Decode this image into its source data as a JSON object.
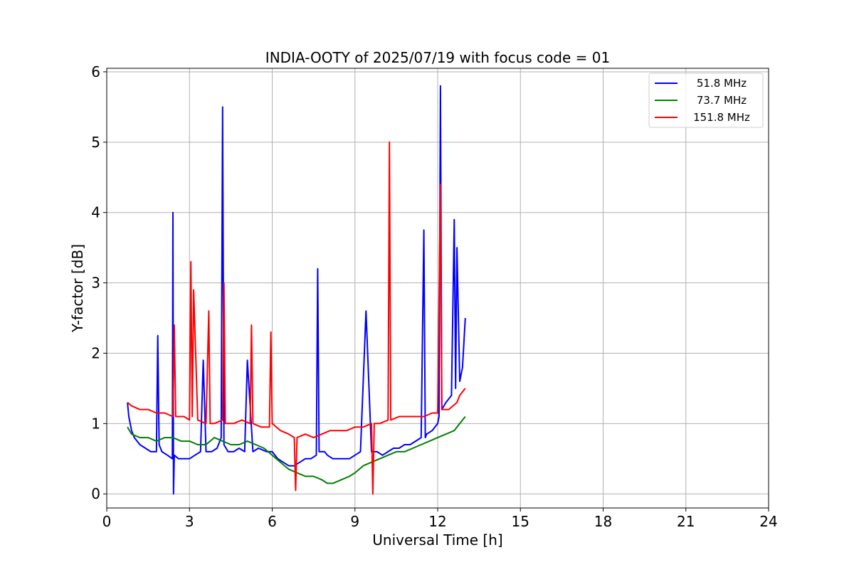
{
  "chart_data": {
    "type": "line",
    "title": "INDIA-OOTY of 2025/07/19 with focus code = 01",
    "xlabel": "Universal Time [h]",
    "ylabel": "Y-factor [dB]",
    "xlim": [
      0,
      24
    ],
    "ylim": [
      -0.2,
      6.05
    ],
    "xticks": [
      0,
      3,
      6,
      9,
      12,
      15,
      18,
      21,
      24
    ],
    "yticks": [
      0,
      1,
      2,
      3,
      4,
      5,
      6
    ],
    "grid": true,
    "legend_position": "top-right",
    "series": [
      {
        "name": "51.8 MHz",
        "color": "#0000ff",
        "x": [
          0.75,
          0.8,
          0.9,
          1.0,
          1.2,
          1.4,
          1.6,
          1.8,
          1.85,
          1.9,
          2.0,
          2.2,
          2.38,
          2.4,
          2.42,
          2.45,
          2.6,
          2.8,
          3.0,
          3.2,
          3.4,
          3.5,
          3.6,
          3.8,
          4.0,
          4.15,
          4.2,
          4.25,
          4.4,
          4.6,
          4.8,
          5.0,
          5.1,
          5.3,
          5.5,
          5.8,
          6.0,
          6.2,
          6.4,
          6.6,
          6.8,
          7.0,
          7.2,
          7.4,
          7.6,
          7.65,
          7.7,
          7.9,
          8.0,
          8.2,
          8.4,
          8.6,
          8.8,
          9.0,
          9.2,
          9.4,
          9.6,
          9.8,
          10.0,
          10.2,
          10.4,
          10.6,
          10.8,
          11.0,
          11.2,
          11.4,
          11.5,
          11.55,
          11.6,
          11.8,
          12.0,
          12.05,
          12.1,
          12.15,
          12.3,
          12.5,
          12.6,
          12.65,
          12.7,
          12.8,
          12.9,
          13.0
        ],
        "y": [
          1.3,
          1.1,
          0.9,
          0.8,
          0.7,
          0.65,
          0.6,
          0.6,
          2.25,
          0.7,
          0.6,
          0.55,
          0.5,
          4.0,
          0.0,
          0.55,
          0.5,
          0.5,
          0.5,
          0.55,
          0.6,
          1.9,
          0.6,
          0.6,
          0.65,
          0.8,
          5.5,
          0.7,
          0.6,
          0.6,
          0.65,
          0.6,
          1.9,
          0.6,
          0.65,
          0.6,
          0.6,
          0.5,
          0.45,
          0.4,
          0.4,
          0.45,
          0.5,
          0.5,
          0.55,
          3.2,
          0.6,
          0.6,
          0.55,
          0.5,
          0.5,
          0.5,
          0.5,
          0.55,
          0.6,
          2.6,
          0.6,
          0.6,
          0.55,
          0.6,
          0.65,
          0.65,
          0.7,
          0.7,
          0.75,
          0.8,
          3.75,
          0.8,
          0.85,
          0.9,
          1.0,
          1.1,
          5.8,
          1.2,
          1.3,
          1.4,
          3.9,
          1.5,
          3.5,
          1.6,
          1.8,
          2.5
        ]
      },
      {
        "name": "73.7 MHz",
        "color": "#008000",
        "x": [
          0.75,
          0.9,
          1.2,
          1.5,
          1.8,
          2.1,
          2.4,
          2.7,
          3.0,
          3.3,
          3.6,
          3.9,
          4.2,
          4.5,
          4.8,
          5.1,
          5.4,
          5.7,
          6.0,
          6.3,
          6.6,
          6.9,
          7.2,
          7.5,
          7.8,
          8.0,
          8.2,
          8.5,
          8.8,
          9.0,
          9.3,
          9.6,
          9.9,
          10.2,
          10.5,
          10.8,
          11.1,
          11.4,
          11.7,
          12.0,
          12.3,
          12.6,
          12.8,
          13.0
        ],
        "y": [
          0.95,
          0.85,
          0.8,
          0.8,
          0.75,
          0.8,
          0.8,
          0.75,
          0.75,
          0.7,
          0.7,
          0.8,
          0.75,
          0.7,
          0.7,
          0.75,
          0.7,
          0.65,
          0.55,
          0.45,
          0.35,
          0.3,
          0.25,
          0.25,
          0.2,
          0.15,
          0.15,
          0.2,
          0.25,
          0.3,
          0.4,
          0.45,
          0.5,
          0.55,
          0.6,
          0.6,
          0.65,
          0.7,
          0.75,
          0.8,
          0.85,
          0.9,
          1.0,
          1.1
        ]
      },
      {
        "name": "151.8 MHz",
        "color": "#ff0000",
        "x": [
          0.75,
          0.9,
          1.2,
          1.5,
          1.8,
          2.1,
          2.4,
          2.45,
          2.5,
          2.8,
          3.0,
          3.05,
          3.1,
          3.15,
          3.3,
          3.6,
          3.7,
          3.75,
          3.9,
          4.2,
          4.25,
          4.3,
          4.6,
          4.9,
          5.2,
          5.25,
          5.3,
          5.6,
          5.9,
          5.95,
          6.0,
          6.3,
          6.6,
          6.8,
          6.85,
          6.9,
          7.2,
          7.5,
          7.8,
          8.1,
          8.4,
          8.7,
          9.0,
          9.3,
          9.6,
          9.65,
          9.7,
          9.9,
          10.2,
          10.25,
          10.3,
          10.6,
          10.9,
          11.2,
          11.5,
          11.8,
          12.0,
          12.1,
          12.15,
          12.4,
          12.7,
          12.8,
          13.0
        ],
        "y": [
          1.3,
          1.25,
          1.2,
          1.2,
          1.15,
          1.15,
          1.1,
          2.4,
          1.1,
          1.1,
          1.05,
          3.3,
          1.1,
          2.9,
          1.05,
          1.0,
          2.6,
          1.0,
          1.0,
          1.05,
          3.0,
          1.0,
          1.0,
          1.05,
          1.0,
          2.4,
          1.0,
          0.95,
          0.95,
          2.3,
          1.0,
          0.9,
          0.85,
          0.8,
          0.05,
          0.8,
          0.85,
          0.8,
          0.85,
          0.9,
          0.9,
          0.9,
          0.95,
          0.95,
          1.0,
          0.0,
          1.0,
          1.0,
          1.05,
          5.0,
          1.05,
          1.1,
          1.1,
          1.1,
          1.1,
          1.15,
          1.15,
          4.4,
          1.2,
          1.2,
          1.3,
          1.4,
          1.5
        ]
      }
    ]
  }
}
